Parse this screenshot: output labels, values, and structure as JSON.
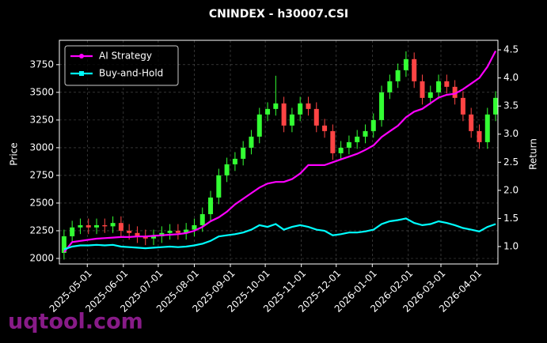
{
  "chart_data": {
    "type": "candlestick",
    "title": "CNINDEX - h30007.CSI",
    "ylabel": "Price",
    "y2label": "Return",
    "watermark": "uqtool.com",
    "legend": "upper left",
    "grid": true,
    "up_color": "#33ff33",
    "down_color": "#ff4444",
    "x": [
      "2025-04-11",
      "2025-04-18",
      "2025-04-25",
      "2025-05-02",
      "2025-05-09",
      "2025-05-16",
      "2025-05-23",
      "2025-05-30",
      "2025-06-06",
      "2025-06-13",
      "2025-06-20",
      "2025-06-27",
      "2025-07-04",
      "2025-07-11",
      "2025-07-18",
      "2025-07-25",
      "2025-08-01",
      "2025-08-08",
      "2025-08-15",
      "2025-08-22",
      "2025-08-29",
      "2025-09-05",
      "2025-09-12",
      "2025-09-19",
      "2025-09-26",
      "2025-10-03",
      "2025-10-10",
      "2025-10-17",
      "2025-10-24",
      "2025-10-31",
      "2025-11-07",
      "2025-11-14",
      "2025-11-21",
      "2025-11-28",
      "2025-12-05",
      "2025-12-12",
      "2025-12-19",
      "2025-12-26",
      "2026-01-02",
      "2026-01-09",
      "2026-01-16",
      "2026-01-23",
      "2026-01-30",
      "2026-02-06",
      "2026-02-13",
      "2026-02-20",
      "2026-02-27",
      "2026-03-06",
      "2026-03-13",
      "2026-03-20",
      "2026-03-27",
      "2026-04-03",
      "2026-04-10",
      "2026-04-17"
    ],
    "open": [
      2050,
      2200,
      2280,
      2300,
      2280,
      2300,
      2290,
      2320,
      2250,
      2230,
      2200,
      2180,
      2200,
      2230,
      2250,
      2230,
      2260,
      2300,
      2400,
      2550,
      2750,
      2850,
      2900,
      3000,
      3100,
      3300,
      3350,
      3400,
      3200,
      3300,
      3400,
      3350,
      3200,
      3150,
      2950,
      3000,
      3050,
      3100,
      3150,
      3250,
      3500,
      3600,
      3700,
      3800,
      3600,
      3450,
      3500,
      3600,
      3550,
      3450,
      3300,
      3150,
      3050,
      3300
    ],
    "high": [
      2260,
      2340,
      2360,
      2360,
      2360,
      2360,
      2380,
      2380,
      2310,
      2290,
      2260,
      2260,
      2290,
      2310,
      2310,
      2320,
      2360,
      2460,
      2610,
      2810,
      2910,
      2960,
      3060,
      3160,
      3360,
      3410,
      3650,
      3460,
      3360,
      3460,
      3460,
      3410,
      3260,
      3210,
      3060,
      3110,
      3160,
      3210,
      3310,
      3560,
      3660,
      3760,
      3870,
      3860,
      3660,
      3560,
      3660,
      3660,
      3610,
      3510,
      3360,
      3210,
      3360,
      3510
    ],
    "low": [
      1990,
      2140,
      2220,
      2220,
      2220,
      2230,
      2230,
      2190,
      2170,
      2140,
      2120,
      2120,
      2140,
      2170,
      2170,
      2170,
      2200,
      2240,
      2340,
      2490,
      2690,
      2790,
      2840,
      2940,
      3040,
      3240,
      3290,
      3140,
      3140,
      3240,
      3290,
      3140,
      3090,
      2890,
      2890,
      2940,
      2990,
      3040,
      3090,
      3190,
      3440,
      3540,
      3640,
      3540,
      3390,
      3390,
      3440,
      3490,
      3390,
      3240,
      3090,
      2990,
      2990,
      3240
    ],
    "close": [
      2200,
      2280,
      2300,
      2280,
      2300,
      2290,
      2320,
      2250,
      2230,
      2200,
      2180,
      2200,
      2230,
      2250,
      2230,
      2260,
      2300,
      2400,
      2550,
      2750,
      2850,
      2900,
      3000,
      3100,
      3300,
      3350,
      3400,
      3200,
      3300,
      3400,
      3350,
      3200,
      3150,
      2950,
      3000,
      3050,
      3100,
      3150,
      3250,
      3500,
      3600,
      3700,
      3800,
      3600,
      3450,
      3500,
      3600,
      3550,
      3450,
      3300,
      3150,
      3050,
      3300,
      3450
    ],
    "series": [
      {
        "name": "AI Strategy",
        "color": "#ff00ff",
        "axis": "y2",
        "marker": "circle",
        "values": [
          0.9,
          1.08,
          1.1,
          1.12,
          1.14,
          1.15,
          1.16,
          1.17,
          1.17,
          1.18,
          1.18,
          1.19,
          1.2,
          1.21,
          1.22,
          1.24,
          1.28,
          1.35,
          1.45,
          1.52,
          1.62,
          1.75,
          1.85,
          1.95,
          2.05,
          2.12,
          2.15,
          2.15,
          2.2,
          2.3,
          2.45,
          2.45,
          2.45,
          2.5,
          2.55,
          2.6,
          2.65,
          2.72,
          2.8,
          2.95,
          3.05,
          3.15,
          3.3,
          3.4,
          3.45,
          3.55,
          3.65,
          3.7,
          3.72,
          3.8,
          3.9,
          4.0,
          4.2,
          4.48
        ]
      },
      {
        "name": "Buy-and-Hold",
        "color": "#00ffff",
        "axis": "y2",
        "marker": "square",
        "values": [
          0.95,
          1.0,
          1.02,
          1.02,
          1.03,
          1.02,
          1.03,
          1.0,
          0.99,
          0.98,
          0.97,
          0.98,
          0.99,
          1.0,
          0.99,
          1.0,
          1.02,
          1.05,
          1.1,
          1.18,
          1.2,
          1.22,
          1.25,
          1.3,
          1.38,
          1.35,
          1.4,
          1.3,
          1.35,
          1.38,
          1.35,
          1.3,
          1.28,
          1.2,
          1.22,
          1.25,
          1.25,
          1.27,
          1.3,
          1.4,
          1.45,
          1.47,
          1.5,
          1.42,
          1.38,
          1.4,
          1.45,
          1.42,
          1.38,
          1.33,
          1.3,
          1.27,
          1.35,
          1.4
        ]
      }
    ],
    "xlim": [
      "2025-04-07",
      "2026-04-19"
    ],
    "xticks": [
      "2025-05-01",
      "2025-06-01",
      "2025-07-01",
      "2025-08-01",
      "2025-09-01",
      "2025-10-01",
      "2025-11-01",
      "2025-12-01",
      "2026-01-01",
      "2026-02-01",
      "2026-03-01",
      "2026-04-01"
    ],
    "ylim": [
      1950,
      3970
    ],
    "yticks": [
      2000,
      2250,
      2500,
      2750,
      3000,
      3250,
      3500,
      3750
    ],
    "y2lim": [
      0.69,
      4.67
    ],
    "y2ticks": [
      {
        "value": 1,
        "label": "1.0"
      },
      {
        "value": 1.5,
        "label": "1.5"
      },
      {
        "value": 2,
        "label": "2.0"
      },
      {
        "value": 2.5,
        "label": "2.5"
      },
      {
        "value": 3,
        "label": "3.0"
      },
      {
        "value": 3.5,
        "label": "3.5"
      },
      {
        "value": 4,
        "label": "4.0"
      },
      {
        "value": 4.5,
        "label": "4.5"
      }
    ]
  }
}
